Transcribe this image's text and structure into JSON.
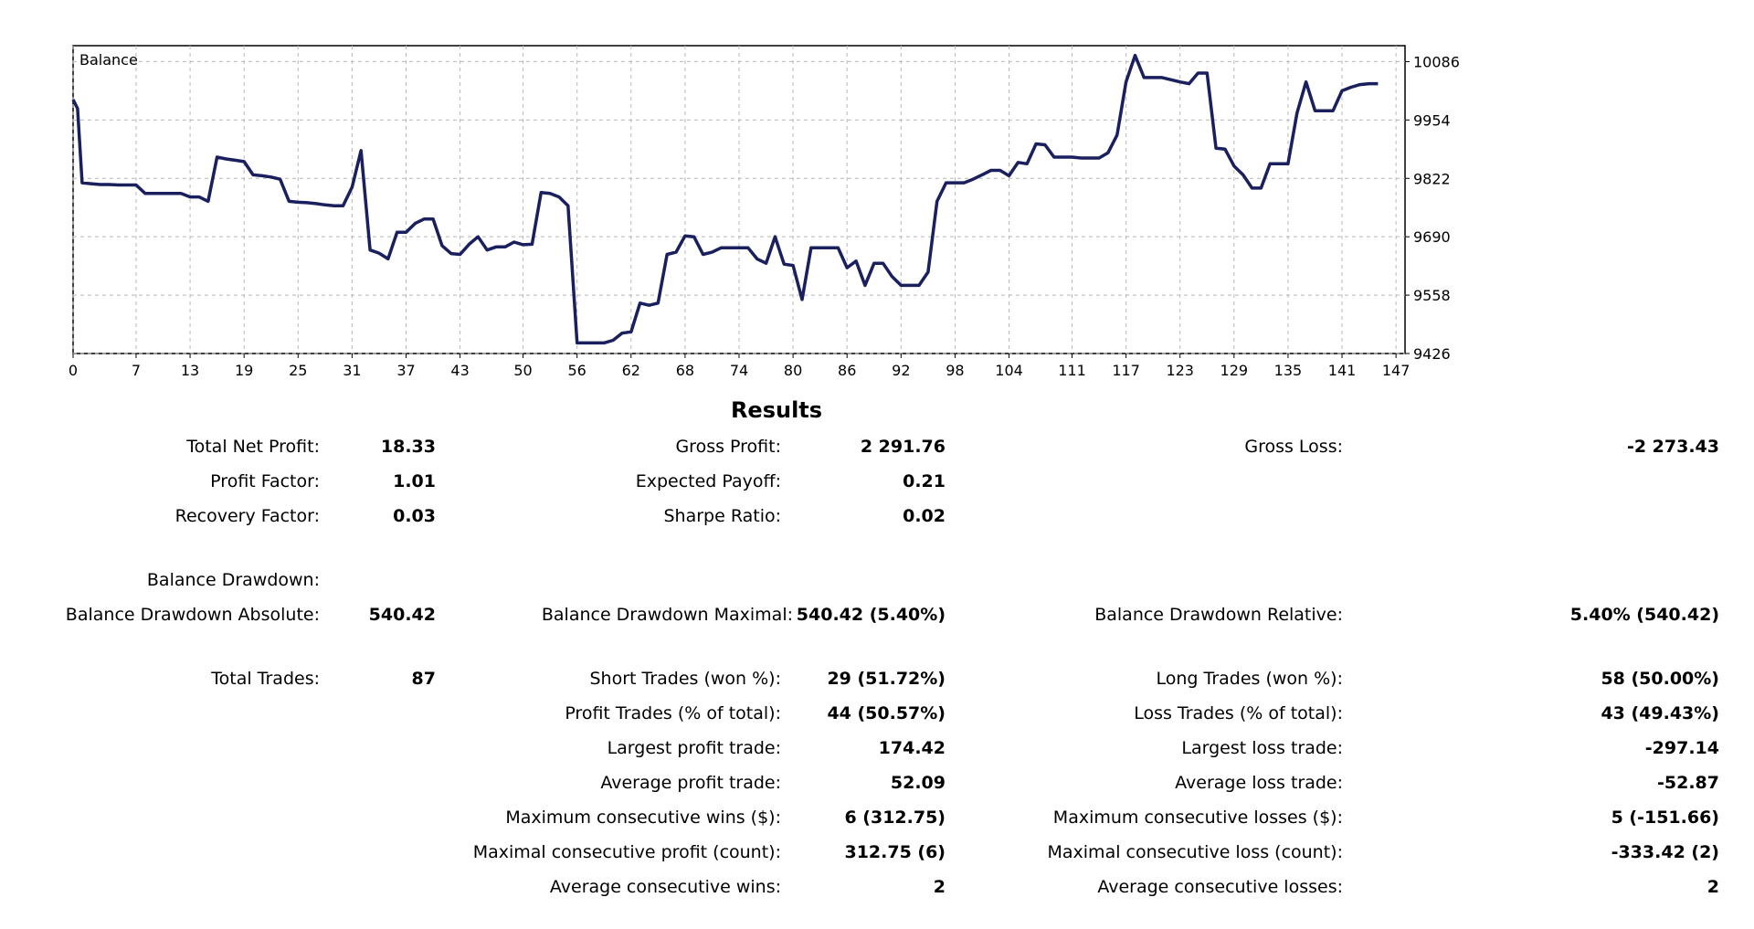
{
  "chart_data": {
    "type": "line",
    "title": "Balance",
    "ylim": [
      9426,
      10122
    ],
    "xlim": [
      0,
      148
    ],
    "y_ticks": [
      9426,
      9558,
      9690,
      9822,
      9954,
      10086
    ],
    "x_ticks": [
      0,
      7,
      13,
      19,
      25,
      31,
      37,
      43,
      50,
      56,
      62,
      68,
      74,
      80,
      86,
      92,
      98,
      104,
      111,
      117,
      123,
      129,
      135,
      141,
      147
    ],
    "line_color": "#1a1f5e",
    "series": [
      {
        "name": "Balance",
        "points": [
          [
            0,
            10000
          ],
          [
            0.5,
            9980
          ],
          [
            1,
            9812
          ],
          [
            2,
            9810
          ],
          [
            3,
            9808
          ],
          [
            4,
            9808
          ],
          [
            5,
            9807
          ],
          [
            6,
            9807
          ],
          [
            7,
            9807
          ],
          [
            8,
            9788
          ],
          [
            9,
            9788
          ],
          [
            10,
            9788
          ],
          [
            11,
            9788
          ],
          [
            12,
            9788
          ],
          [
            13,
            9780
          ],
          [
            14,
            9780
          ],
          [
            15,
            9770
          ],
          [
            16,
            9870
          ],
          [
            17,
            9866
          ],
          [
            18,
            9863
          ],
          [
            19,
            9860
          ],
          [
            20,
            9830
          ],
          [
            21,
            9828
          ],
          [
            22,
            9825
          ],
          [
            23,
            9820
          ],
          [
            24,
            9770
          ],
          [
            25,
            9768
          ],
          [
            26,
            9767
          ],
          [
            27,
            9765
          ],
          [
            28,
            9762
          ],
          [
            29,
            9760
          ],
          [
            30,
            9760
          ],
          [
            31,
            9802
          ],
          [
            32,
            9885
          ],
          [
            33,
            9660
          ],
          [
            34,
            9653
          ],
          [
            35,
            9640
          ],
          [
            36,
            9700
          ],
          [
            37,
            9700
          ],
          [
            38,
            9720
          ],
          [
            39,
            9730
          ],
          [
            40,
            9730
          ],
          [
            41,
            9670
          ],
          [
            42,
            9652
          ],
          [
            43,
            9650
          ],
          [
            44,
            9673
          ],
          [
            45,
            9690
          ],
          [
            46,
            9660
          ],
          [
            47,
            9667
          ],
          [
            48,
            9667
          ],
          [
            49,
            9678
          ],
          [
            50,
            9672
          ],
          [
            51,
            9673
          ],
          [
            52,
            9790
          ],
          [
            53,
            9788
          ],
          [
            54,
            9780
          ],
          [
            55,
            9760
          ],
          [
            56,
            9450
          ],
          [
            57,
            9450
          ],
          [
            58,
            9450
          ],
          [
            59,
            9450
          ],
          [
            60,
            9456
          ],
          [
            61,
            9472
          ],
          [
            62,
            9475
          ],
          [
            63,
            9540
          ],
          [
            64,
            9535
          ],
          [
            65,
            9540
          ],
          [
            66,
            9650
          ],
          [
            67,
            9655
          ],
          [
            68,
            9692
          ],
          [
            69,
            9690
          ],
          [
            70,
            9650
          ],
          [
            71,
            9655
          ],
          [
            72,
            9665
          ],
          [
            73,
            9665
          ],
          [
            74,
            9665
          ],
          [
            75,
            9665
          ],
          [
            76,
            9640
          ],
          [
            77,
            9630
          ],
          [
            78,
            9690
          ],
          [
            79,
            9628
          ],
          [
            80,
            9625
          ],
          [
            81,
            9548
          ],
          [
            82,
            9665
          ],
          [
            83,
            9665
          ],
          [
            84,
            9665
          ],
          [
            85,
            9665
          ],
          [
            86,
            9620
          ],
          [
            87,
            9635
          ],
          [
            88,
            9580
          ],
          [
            89,
            9630
          ],
          [
            90,
            9630
          ],
          [
            91,
            9600
          ],
          [
            92,
            9580
          ],
          [
            93,
            9580
          ],
          [
            94,
            9580
          ],
          [
            95,
            9610
          ],
          [
            96,
            9770
          ],
          [
            97,
            9812
          ],
          [
            98,
            9812
          ],
          [
            99,
            9812
          ],
          [
            100,
            9820
          ],
          [
            101,
            9830
          ],
          [
            102,
            9840
          ],
          [
            103,
            9840
          ],
          [
            104,
            9828
          ],
          [
            105,
            9858
          ],
          [
            106,
            9855
          ],
          [
            107,
            9900
          ],
          [
            108,
            9898
          ],
          [
            109,
            9870
          ],
          [
            110,
            9870
          ],
          [
            111,
            9870
          ],
          [
            112,
            9868
          ],
          [
            113,
            9868
          ],
          [
            114,
            9868
          ],
          [
            115,
            9880
          ],
          [
            116,
            9920
          ],
          [
            117,
            10040
          ],
          [
            118,
            10100
          ],
          [
            119,
            10050
          ],
          [
            120,
            10050
          ],
          [
            121,
            10050
          ],
          [
            122,
            10045
          ],
          [
            123,
            10040
          ],
          [
            124,
            10036
          ],
          [
            125,
            10060
          ],
          [
            126,
            10060
          ],
          [
            127,
            9890
          ],
          [
            128,
            9888
          ],
          [
            129,
            9850
          ],
          [
            130,
            9830
          ],
          [
            131,
            9800
          ],
          [
            132,
            9800
          ],
          [
            133,
            9855
          ],
          [
            134,
            9855
          ],
          [
            135,
            9855
          ],
          [
            136,
            9970
          ],
          [
            137,
            10040
          ],
          [
            138,
            9975
          ],
          [
            139,
            9975
          ],
          [
            140,
            9975
          ],
          [
            141,
            10020
          ],
          [
            142,
            10028
          ],
          [
            143,
            10034
          ],
          [
            144,
            10036
          ],
          [
            145,
            10036
          ]
        ]
      }
    ]
  },
  "results": {
    "title": "Results",
    "rows": [
      {
        "l1": "Total Net Profit:",
        "v1": "18.33",
        "l2": "Gross Profit:",
        "v2": "2 291.76",
        "l3": "Gross Loss:",
        "v3": "-2 273.43"
      },
      {
        "l1": "Profit Factor:",
        "v1": "1.01",
        "l2": "Expected Payoff:",
        "v2": "0.21",
        "l3": "",
        "v3": ""
      },
      {
        "l1": "Recovery Factor:",
        "v1": "0.03",
        "l2": "Sharpe Ratio:",
        "v2": "0.02",
        "l3": "",
        "v3": ""
      },
      {
        "l1": "Balance Drawdown:",
        "v1": "",
        "l2": "",
        "v2": "",
        "l3": "",
        "v3": ""
      },
      {
        "l1": "Balance Drawdown Absolute:",
        "v1": "540.42",
        "l2": "Balance Drawdown Maximal:",
        "v2": "540.42 (5.40%)",
        "l3": "Balance Drawdown Relative:",
        "v3": "5.40% (540.42)"
      },
      {
        "l1": "Total Trades:",
        "v1": "87",
        "l2": "Short Trades (won %):",
        "v2": "29 (51.72%)",
        "l3": "Long Trades (won %):",
        "v3": "58 (50.00%)"
      },
      {
        "l1": "",
        "v1": "",
        "l2": "Profit Trades (% of total):",
        "v2": "44 (50.57%)",
        "l3": "Loss Trades (% of total):",
        "v3": "43 (49.43%)"
      },
      {
        "l1": "",
        "v1": "",
        "l2": "Largest profit trade:",
        "v2": "174.42",
        "l3": "Largest loss trade:",
        "v3": "-297.14"
      },
      {
        "l1": "",
        "v1": "",
        "l2": "Average profit trade:",
        "v2": "52.09",
        "l3": "Average loss trade:",
        "v3": "-52.87"
      },
      {
        "l1": "",
        "v1": "",
        "l2": "Maximum consecutive wins ($):",
        "v2": "6 (312.75)",
        "l3": "Maximum consecutive losses ($):",
        "v3": "5 (-151.66)"
      },
      {
        "l1": "",
        "v1": "",
        "l2": "Maximal consecutive profit (count):",
        "v2": "312.75 (6)",
        "l3": "Maximal consecutive loss (count):",
        "v3": "-333.42 (2)"
      },
      {
        "l1": "",
        "v1": "",
        "l2": "Average consecutive wins:",
        "v2": "2",
        "l3": "Average consecutive losses:",
        "v3": "2"
      }
    ]
  }
}
